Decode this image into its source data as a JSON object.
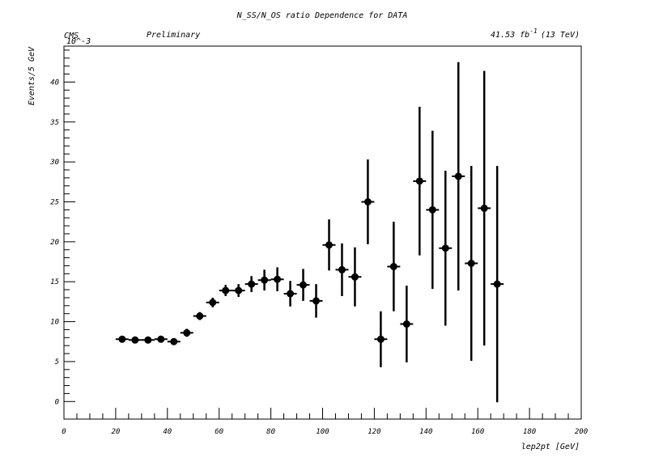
{
  "header": {
    "title": "N_SS/N_OS ratio Dependence for DATA",
    "experiment": "CMS",
    "status": "Preliminary",
    "lumi_value": "41.53 fb",
    "lumi_exponent": "-1",
    "energy": "(13 TeV)",
    "y_multiplier": "10^-3"
  },
  "chart_data": {
    "type": "scatter",
    "xlabel": "lep2pt [GeV]",
    "ylabel": "Events/5 GeV",
    "xlim": [
      0,
      200
    ],
    "ylim": [
      -2.2,
      44.5
    ],
    "x_ticks": [
      0,
      20,
      40,
      60,
      80,
      100,
      120,
      140,
      160,
      180,
      200
    ],
    "y_ticks": [
      0,
      5,
      10,
      15,
      20,
      25,
      30,
      35,
      40
    ],
    "x_tick_labels": [
      "0",
      "20",
      "40",
      "60",
      "80",
      "100",
      "120",
      "140",
      "160",
      "180",
      "200"
    ],
    "y_tick_labels": [
      "0",
      "5",
      "10",
      "15",
      "20",
      "25",
      "30",
      "35",
      "40"
    ],
    "bin_width": 5,
    "grid": false,
    "series": [
      {
        "x": [
          22.5,
          27.5,
          32.5,
          37.5,
          42.5,
          47.5,
          52.5,
          57.5,
          62.5,
          67.5,
          72.5,
          77.5,
          82.5,
          87.5,
          92.5,
          97.5,
          102.5,
          107.5,
          112.5,
          117.5,
          122.5,
          127.5,
          132.5,
          137.5,
          142.5,
          147.5,
          152.5,
          157.5,
          162.5,
          167.5
        ],
        "y": [
          7.8,
          7.7,
          7.7,
          7.8,
          7.5,
          8.6,
          10.7,
          12.4,
          13.9,
          13.9,
          14.7,
          15.2,
          15.3,
          13.5,
          14.6,
          12.6,
          19.6,
          16.5,
          15.6,
          25.0,
          7.8,
          16.9,
          9.7,
          27.6,
          24.0,
          19.2,
          28.2,
          17.3,
          24.2,
          14.7
        ],
        "yerr": [
          0.4,
          0.3,
          0.3,
          0.3,
          0.4,
          0.5,
          0.5,
          0.6,
          0.7,
          0.8,
          1.0,
          1.3,
          1.5,
          1.6,
          2.0,
          2.1,
          3.2,
          3.3,
          3.7,
          5.3,
          3.5,
          5.6,
          4.8,
          9.3,
          9.9,
          9.7,
          14.3,
          12.2,
          17.2,
          14.8
        ]
      }
    ]
  }
}
